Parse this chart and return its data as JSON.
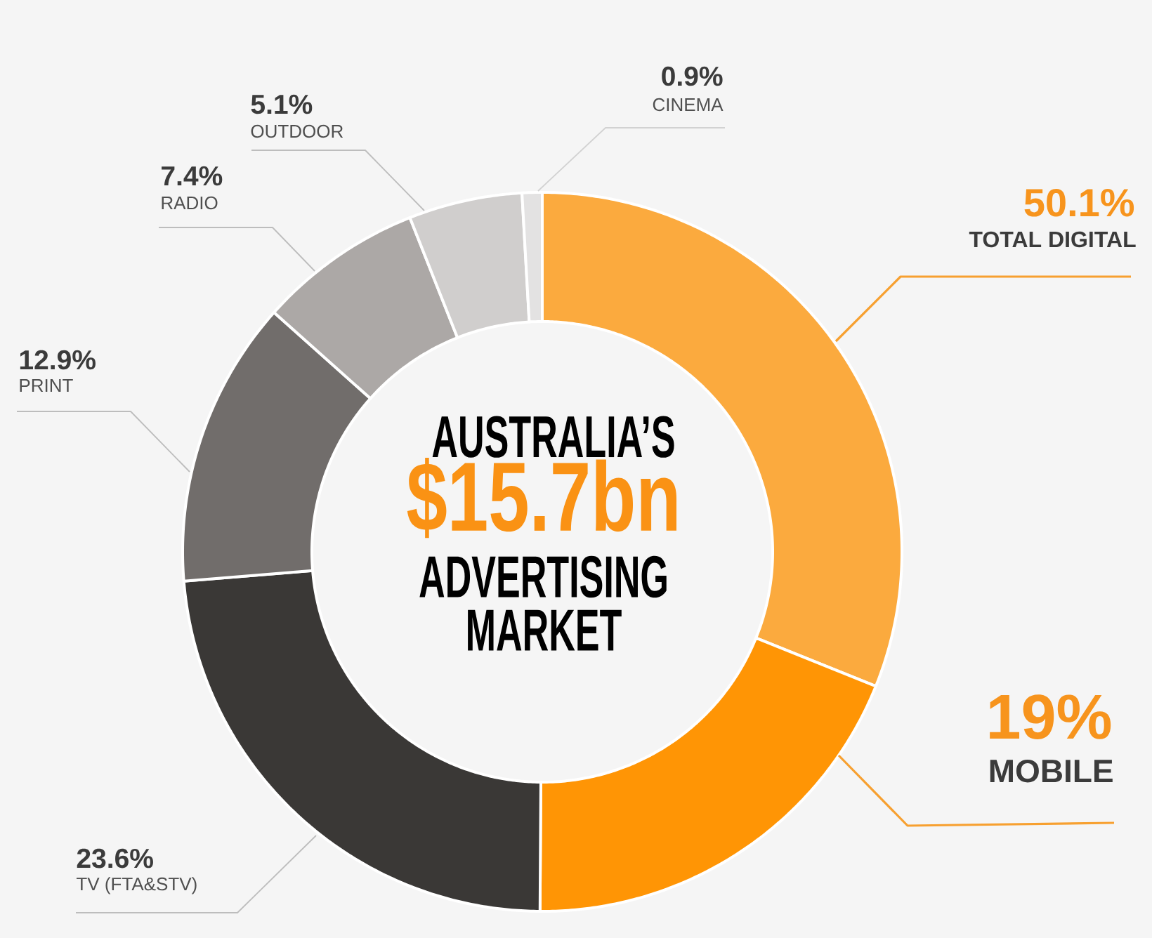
{
  "chart_data": {
    "type": "donut",
    "title": "AUSTRALIA’S **$15.7bn** ADVERTISING MARKET",
    "categories": [
      null,
      "MOBILE",
      "TV (FTA&STV)",
      "PRINT",
      "RADIO",
      "OUTDOOR",
      "CINEMA"
    ],
    "values": [
      31.1,
      19,
      23.6,
      12.9,
      7.4,
      5.1,
      0.9
    ],
    "value_labels": [
      null,
      "19%",
      "23.6%",
      "12.9%",
      "7.4%",
      "5.1%",
      "0.9%"
    ],
    "colors": [
      "#fbaa3e",
      "#ff9505",
      "#3a3836",
      "#716d6b",
      "#aca8a6",
      "#d0cecd",
      "#e3e2e2"
    ],
    "annotations": [
      "50.1%",
      "TOTAL DIGITAL"
    ]
  }
}
